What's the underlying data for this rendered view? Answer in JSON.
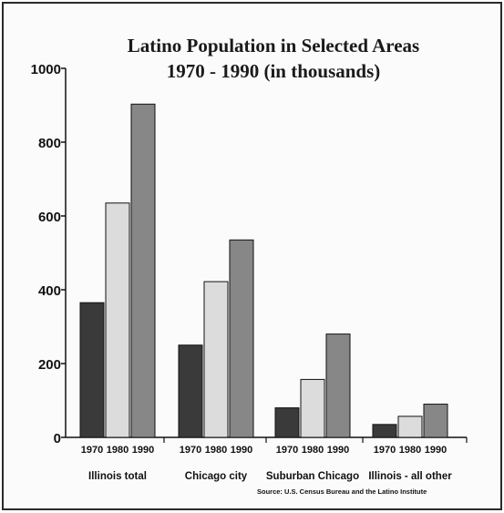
{
  "chart_data": {
    "type": "bar",
    "title_lines": [
      "Latino Population in Selected Areas",
      "1970 - 1990 (in thousands)"
    ],
    "categories": [
      "Illinois total",
      "Chicago city",
      "Suburban Chicago",
      "Illinois - all other"
    ],
    "series": [
      {
        "values": [
          365,
          250,
          80,
          35
        ]
      },
      {
        "values": [
          635,
          422,
          157,
          57
        ]
      },
      {
        "values": [
          903,
          535,
          280,
          90
        ]
      }
    ],
    "series_tick_labels": [
      "1970",
      "1980",
      "1990"
    ],
    "ylim": [
      0,
      1000
    ],
    "yticks": [
      0,
      200,
      400,
      600,
      800,
      1000
    ],
    "grid": false,
    "legend": "none",
    "source": "Source: U.S. Census Bureau and the Latino Institute",
    "colors": [
      "#3a3a3a",
      "#dcdcdc",
      "#878787"
    ]
  }
}
